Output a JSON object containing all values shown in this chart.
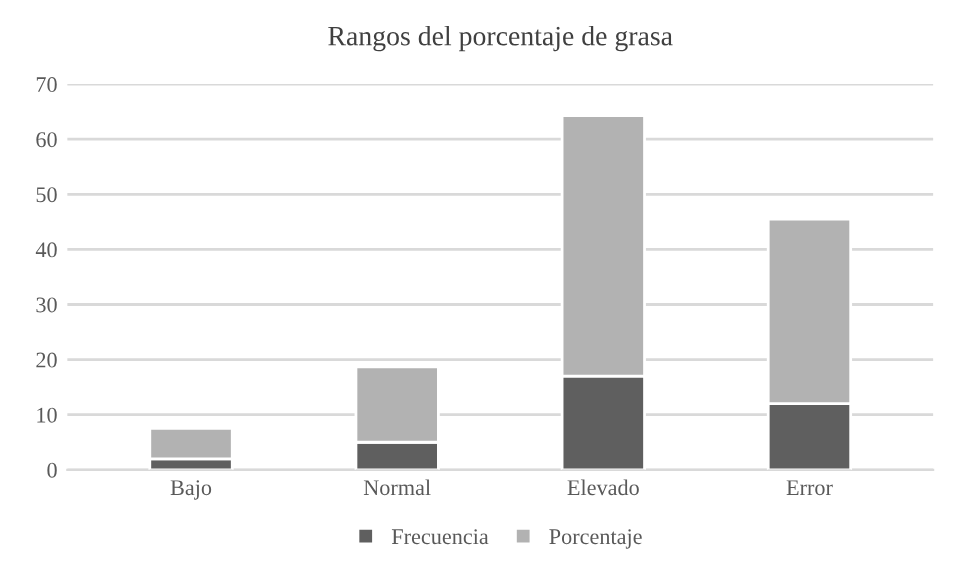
{
  "chart_data": {
    "type": "bar",
    "title": "Rangos del porcentaje de grasa",
    "categories": [
      "Bajo",
      "Normal",
      "Elevado",
      "Error"
    ],
    "stacked": true,
    "series": [
      {
        "name": "Frecuencia",
        "color": "#5f5f5f",
        "values": [
          2,
          5,
          17,
          12
        ]
      },
      {
        "name": "Porcentaje",
        "color": "#b2b2b2",
        "values": [
          5.5,
          13.7,
          47.3,
          33.5
        ]
      }
    ],
    "ylim": [
      0,
      70
    ],
    "yticks": [
      0,
      10,
      20,
      30,
      40,
      50,
      60,
      70
    ],
    "grid": "y",
    "legend": "bottom"
  }
}
